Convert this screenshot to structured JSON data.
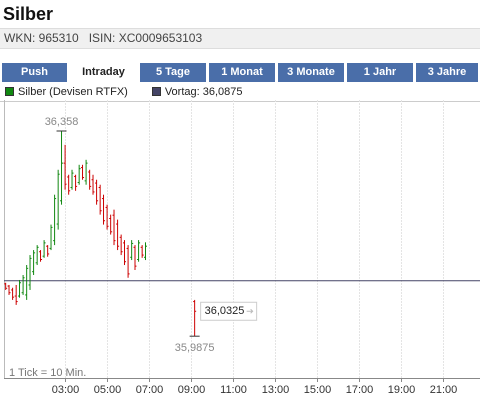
{
  "header": {
    "title": "Silber",
    "wkn": "WKN: 965310",
    "isin": "ISIN: XC0009653103"
  },
  "tabs": [
    "Push",
    "Intraday",
    "5 Tage",
    "1 Monat",
    "3 Monate",
    "1 Jahr",
    "3 Jahre"
  ],
  "active_tab": "Intraday",
  "chart_data": {
    "type": "ohlc",
    "series": [
      {
        "name": "Silber (Devisen RTFX)",
        "color": "#118811",
        "up_color": "#118811",
        "down_color": "#cc0000",
        "x": [
          0.17,
          0.33,
          0.5,
          0.67,
          0.83,
          1,
          1.17,
          1.33,
          1.5,
          1.67,
          1.83,
          2,
          2.17,
          2.33,
          2.5,
          2.67,
          2.83,
          3,
          3.17,
          3.33,
          3.5,
          3.67,
          3.83,
          4,
          4.17,
          4.33,
          4.5,
          4.67,
          4.83,
          5,
          5.17,
          5.33,
          5.5,
          5.67,
          5.83,
          6,
          6.17,
          6.33,
          6.5,
          6.67,
          6.83,
          9.17
        ],
        "open": [
          36.082,
          36.078,
          36.071,
          36.06,
          36.06,
          36.066,
          36.062,
          36.08,
          36.104,
          36.12,
          36.14,
          36.132,
          36.15,
          36.146,
          36.16,
          36.19,
          36.232,
          36.3,
          36.275,
          36.256,
          36.276,
          36.265,
          36.292,
          36.268,
          36.284,
          36.27,
          36.264,
          36.256,
          36.236,
          36.22,
          36.2,
          36.206,
          36.19,
          36.166,
          36.156,
          36.146,
          36.13,
          36.148,
          36.126,
          36.148,
          36.13,
          36.05
        ],
        "high": [
          36.084,
          36.08,
          36.075,
          36.08,
          36.089,
          36.098,
          36.116,
          36.134,
          36.143,
          36.152,
          36.143,
          36.161,
          36.152,
          36.189,
          36.243,
          36.288,
          36.358,
          36.333,
          36.279,
          36.288,
          36.279,
          36.297,
          36.297,
          36.306,
          36.288,
          36.279,
          36.27,
          36.261,
          36.243,
          36.225,
          36.207,
          36.216,
          36.198,
          36.171,
          36.161,
          36.152,
          36.161,
          36.152,
          36.161,
          36.152,
          36.157,
          36.053
        ],
        "low": [
          36.071,
          36.062,
          36.053,
          36.044,
          36.057,
          36.062,
          36.053,
          36.071,
          36.098,
          36.116,
          36.122,
          36.129,
          36.131,
          36.143,
          36.152,
          36.18,
          36.225,
          36.252,
          36.243,
          36.252,
          36.25,
          36.261,
          36.27,
          36.261,
          36.252,
          36.243,
          36.225,
          36.207,
          36.189,
          36.18,
          36.171,
          36.152,
          36.143,
          36.134,
          36.116,
          36.093,
          36.125,
          36.107,
          36.122,
          36.129,
          36.125,
          35.9875
        ],
        "close": [
          36.074,
          36.066,
          36.058,
          36.05,
          36.084,
          36.093,
          36.11,
          36.128,
          36.138,
          36.148,
          36.126,
          36.156,
          36.136,
          36.184,
          36.236,
          36.28,
          36.3,
          36.262,
          36.25,
          36.282,
          36.258,
          36.29,
          36.274,
          36.3,
          36.258,
          36.248,
          36.232,
          36.214,
          36.196,
          36.186,
          36.176,
          36.16,
          36.15,
          36.14,
          36.122,
          36.1,
          36.155,
          36.114,
          36.156,
          36.134,
          36.15,
          36.0325
        ]
      }
    ],
    "previous_close": {
      "value": 36.0875,
      "label": "Vortag: 36,0875",
      "color": "#444466"
    },
    "high_label": {
      "value": 36.358,
      "label": "36,358"
    },
    "low_label": {
      "value": 35.9875,
      "label": "35,9875"
    },
    "last_label": {
      "value": 36.0325,
      "label": "36,0325"
    },
    "note": "1 Tick = 10 Min.",
    "xlim": [
      -0.1,
      22.76
    ],
    "ylim": [
      35.912,
      36.414
    ],
    "xticks": [
      {
        "value": 3,
        "label": "03:00"
      },
      {
        "value": 5,
        "label": "05:00"
      },
      {
        "value": 7,
        "label": "07:00"
      },
      {
        "value": 9,
        "label": "09:00"
      },
      {
        "value": 11,
        "label": "11:00"
      },
      {
        "value": 13,
        "label": "13:00"
      },
      {
        "value": 15,
        "label": "15:00"
      },
      {
        "value": 17,
        "label": "17:00"
      },
      {
        "value": 19,
        "label": "19:00"
      },
      {
        "value": 21,
        "label": "21:00"
      }
    ],
    "grid": true
  }
}
